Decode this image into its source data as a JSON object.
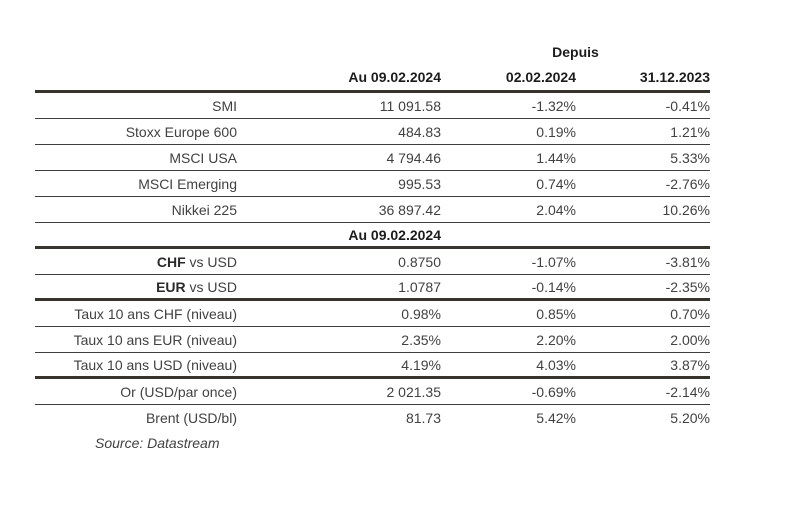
{
  "page": {
    "header": {
      "since_label": "Depuis",
      "value_col": "Au 09.02.2024",
      "since_col_1": "02.02.2024",
      "since_col_2": "31.12.2023"
    },
    "indices": [
      {
        "label": "SMI",
        "value": "11 091.58",
        "since1": "-1.32%",
        "since2": "-0.41%"
      },
      {
        "label": "Stoxx Europe 600",
        "value": "484.83",
        "since1": "0.19%",
        "since2": "1.21%"
      },
      {
        "label": "MSCI USA",
        "value": "4 794.46",
        "since1": "1.44%",
        "since2": "5.33%"
      },
      {
        "label": "MSCI Emerging",
        "value": "995.53",
        "since1": "0.74%",
        "since2": "-2.76%"
      },
      {
        "label": "Nikkei 225",
        "value": "36 897.42",
        "since1": "2.04%",
        "since2": "10.26%"
      }
    ],
    "fx_section_header": "Au 09.02.2024",
    "fx": [
      {
        "label_bold": "CHF",
        "label_rest": " vs USD",
        "value": "0.8750",
        "since1": "-1.07%",
        "since2": "-3.81%"
      },
      {
        "label_bold": "EUR",
        "label_rest": " vs USD",
        "value": "1.0787",
        "since1": "-0.14%",
        "since2": "-2.35%"
      }
    ],
    "rates": [
      {
        "label": "Taux 10 ans CHF (niveau)",
        "value": "0.98%",
        "since1": "0.85%",
        "since2": "0.70%"
      },
      {
        "label": "Taux 10 ans EUR (niveau)",
        "value": "2.35%",
        "since1": "2.20%",
        "since2": "2.00%"
      },
      {
        "label": "Taux 10 ans USD (niveau)",
        "value": "4.19%",
        "since1": "4.03%",
        "since2": "3.87%"
      }
    ],
    "commodities": [
      {
        "label": "Or (USD/par once)",
        "value": "2 021.35",
        "since1": "-0.69%",
        "since2": "-2.14%"
      },
      {
        "label": "Brent (USD/bl)",
        "value": "81.73",
        "since1": "5.42%",
        "since2": "5.20%"
      }
    ],
    "source": "Source: Datastream",
    "colors": {
      "text": "#414141",
      "header_text": "#1c1c1c",
      "thick_rule": "#36342c",
      "thin_rule": "#3e3e3e"
    }
  }
}
